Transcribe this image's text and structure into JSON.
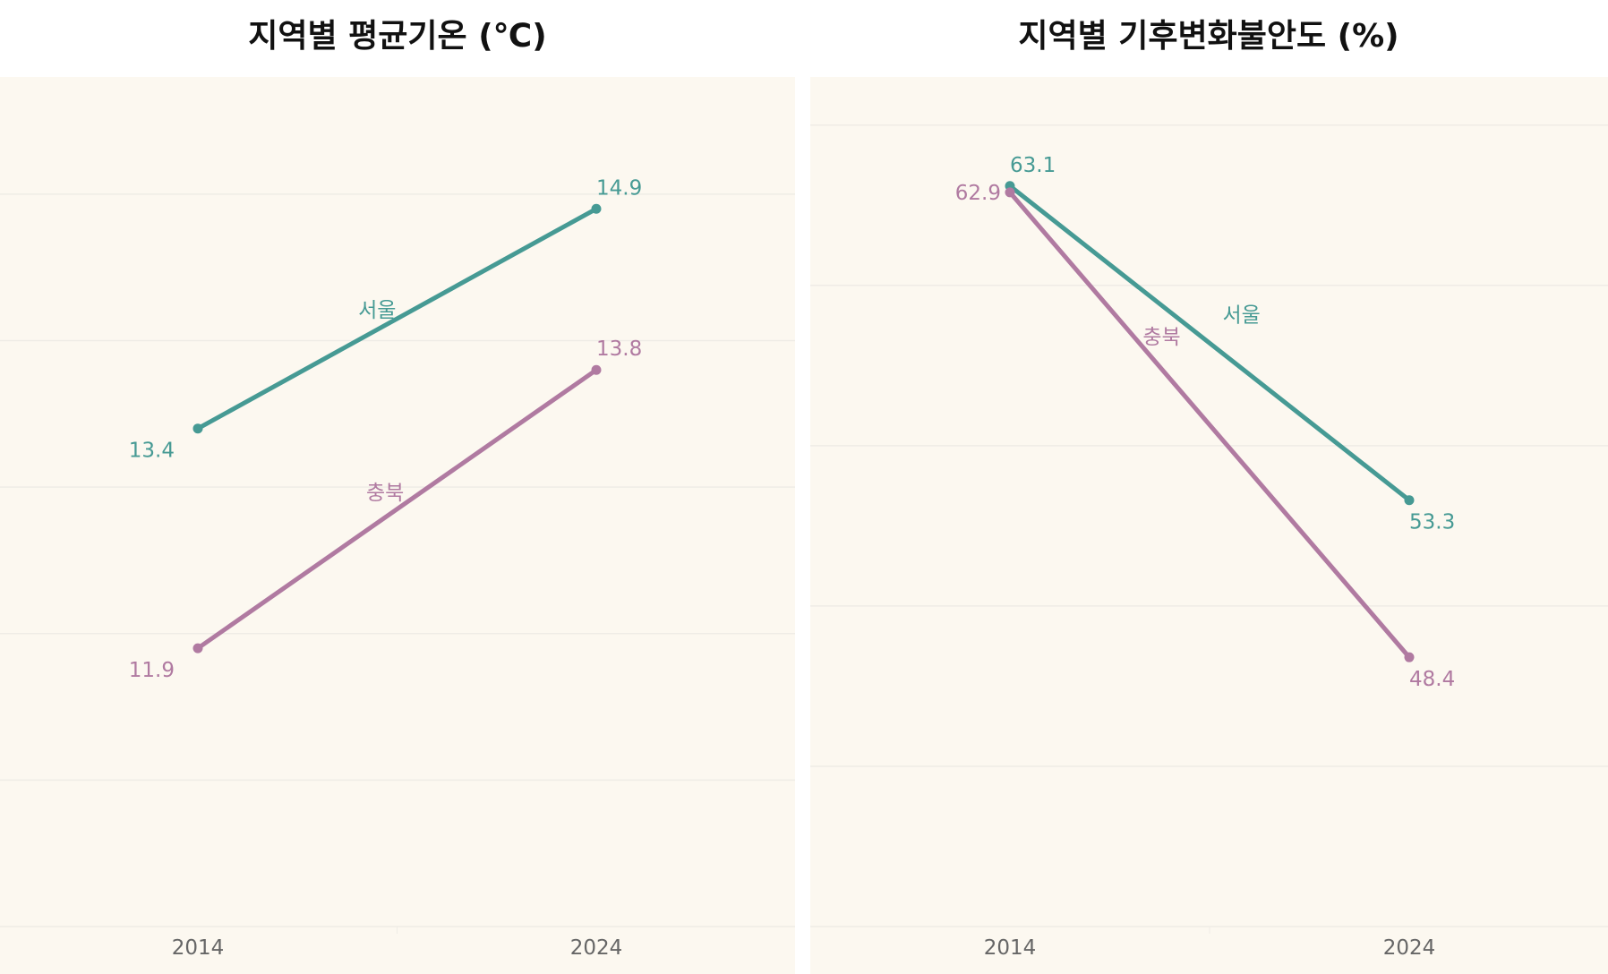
{
  "colors": {
    "seoul": "#469a94",
    "chungbuk": "#b07aa1",
    "background": "#fcf8f0",
    "grid": "#efece6"
  },
  "chart_data": [
    {
      "type": "line",
      "title": "지역별 평균기온 (℃)",
      "categories": [
        "2014",
        "2024"
      ],
      "ylim": [
        10,
        15.8
      ],
      "gridlines": [
        10,
        11,
        12,
        13,
        14,
        15
      ],
      "grid": true,
      "series": [
        {
          "name": "서울",
          "key": "seoul",
          "values": [
            13.4,
            14.9
          ],
          "labels": [
            "13.4",
            "14.9"
          ]
        },
        {
          "name": "충북",
          "key": "chungbuk",
          "values": [
            11.9,
            13.8
          ],
          "labels": [
            "11.9",
            "13.8"
          ]
        }
      ]
    },
    {
      "type": "line",
      "title": "지역별 기후변화불안도 (%)",
      "categories": [
        "2014",
        "2024"
      ],
      "ylim": [
        40,
        66.5
      ],
      "gridlines": [
        40,
        45,
        50,
        55,
        60,
        65
      ],
      "grid": true,
      "series": [
        {
          "name": "서울",
          "key": "seoul",
          "values": [
            63.1,
            53.3
          ],
          "labels": [
            "63.1",
            "53.3"
          ]
        },
        {
          "name": "충북",
          "key": "chungbuk",
          "values": [
            62.9,
            48.4
          ],
          "labels": [
            "62.9",
            "48.4"
          ]
        }
      ]
    }
  ]
}
